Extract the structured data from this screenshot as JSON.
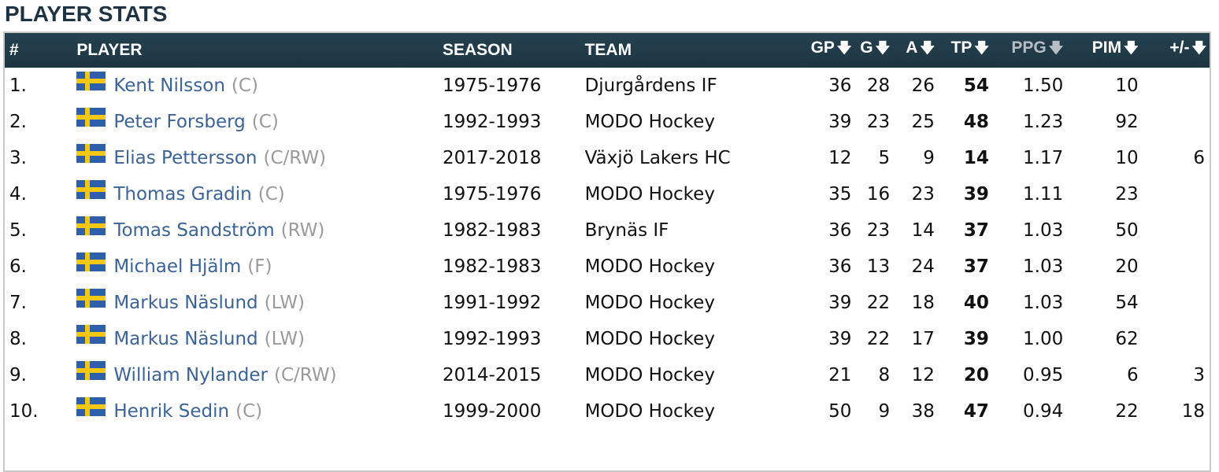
{
  "title": "PLAYER STATS",
  "colors": {
    "header_bg": "#21394a",
    "link": "#3c6395",
    "muted": "#9a9a9a"
  },
  "sort_icon": "arrow-down-icon",
  "columns": {
    "rank": "#",
    "player": "PLAYER",
    "season": "SEASON",
    "team": "TEAM",
    "gp": "GP",
    "g": "G",
    "a": "A",
    "tp": "TP",
    "ppg": "PPG",
    "pim": "PIM",
    "pm": "+/-"
  },
  "rows": [
    {
      "rank": "1.",
      "name": "Kent Nilsson",
      "pos": "(C)",
      "season": "1975-1976",
      "team": "Djurgårdens IF",
      "gp": "36",
      "g": "28",
      "a": "26",
      "tp": "54",
      "ppg": "1.50",
      "pim": "10",
      "pm": ""
    },
    {
      "rank": "2.",
      "name": "Peter Forsberg",
      "pos": "(C)",
      "season": "1992-1993",
      "team": "MODO Hockey",
      "gp": "39",
      "g": "23",
      "a": "25",
      "tp": "48",
      "ppg": "1.23",
      "pim": "92",
      "pm": ""
    },
    {
      "rank": "3.",
      "name": "Elias Pettersson",
      "pos": "(C/RW)",
      "season": "2017-2018",
      "team": "Växjö Lakers HC",
      "gp": "12",
      "g": "5",
      "a": "9",
      "tp": "14",
      "ppg": "1.17",
      "pim": "10",
      "pm": "6"
    },
    {
      "rank": "4.",
      "name": "Thomas Gradin",
      "pos": "(C)",
      "season": "1975-1976",
      "team": "MODO Hockey",
      "gp": "35",
      "g": "16",
      "a": "23",
      "tp": "39",
      "ppg": "1.11",
      "pim": "23",
      "pm": ""
    },
    {
      "rank": "5.",
      "name": "Tomas Sandström",
      "pos": "(RW)",
      "season": "1982-1983",
      "team": "Brynäs IF",
      "gp": "36",
      "g": "23",
      "a": "14",
      "tp": "37",
      "ppg": "1.03",
      "pim": "50",
      "pm": ""
    },
    {
      "rank": "6.",
      "name": "Michael Hjälm",
      "pos": "(F)",
      "season": "1982-1983",
      "team": "MODO Hockey",
      "gp": "36",
      "g": "13",
      "a": "24",
      "tp": "37",
      "ppg": "1.03",
      "pim": "20",
      "pm": ""
    },
    {
      "rank": "7.",
      "name": "Markus Näslund",
      "pos": "(LW)",
      "season": "1991-1992",
      "team": "MODO Hockey",
      "gp": "39",
      "g": "22",
      "a": "18",
      "tp": "40",
      "ppg": "1.03",
      "pim": "54",
      "pm": ""
    },
    {
      "rank": "8.",
      "name": "Markus Näslund",
      "pos": "(LW)",
      "season": "1992-1993",
      "team": "MODO Hockey",
      "gp": "39",
      "g": "22",
      "a": "17",
      "tp": "39",
      "ppg": "1.00",
      "pim": "62",
      "pm": ""
    },
    {
      "rank": "9.",
      "name": "William Nylander",
      "pos": "(C/RW)",
      "season": "2014-2015",
      "team": "MODO Hockey",
      "gp": "21",
      "g": "8",
      "a": "12",
      "tp": "20",
      "ppg": "0.95",
      "pim": "6",
      "pm": "3"
    },
    {
      "rank": "10.",
      "name": "Henrik Sedin",
      "pos": "(C)",
      "season": "1999-2000",
      "team": "MODO Hockey",
      "gp": "50",
      "g": "9",
      "a": "38",
      "tp": "47",
      "ppg": "0.94",
      "pim": "22",
      "pm": "18"
    }
  ]
}
